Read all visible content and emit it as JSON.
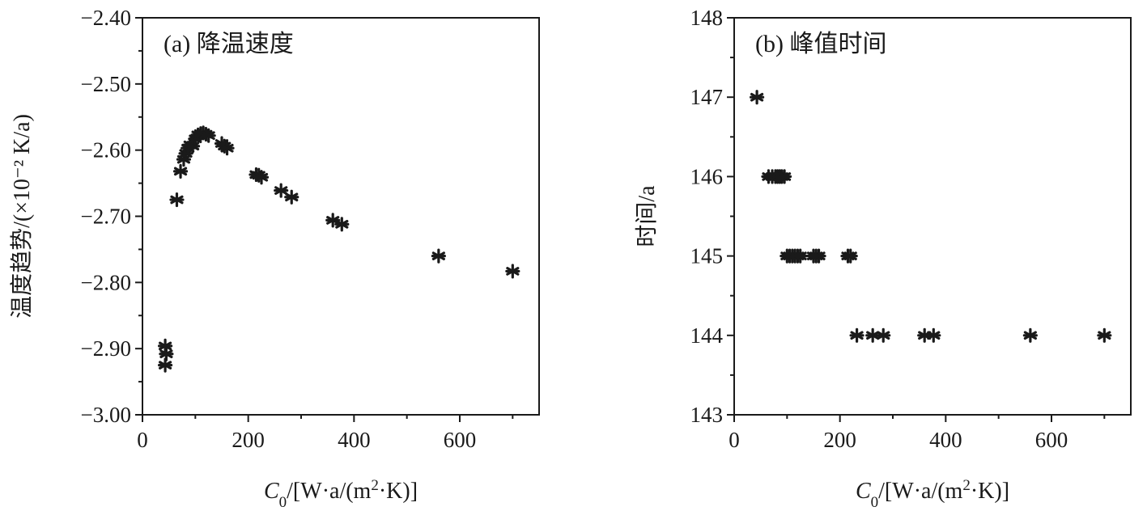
{
  "chart_data": [
    {
      "type": "scatter",
      "panel_label": "(a) 降温速度",
      "xlabel": {
        "italic": "C",
        "sub": "0",
        "rest": "/[W·a/(m",
        "sup": "2",
        "end": "·K)]"
      },
      "ylabel": "温度趋势/(×10⁻² K/a)",
      "xlim": [
        0,
        750
      ],
      "ylim": [
        -3.0,
        -2.4
      ],
      "xticks": [
        0,
        200,
        400,
        600
      ],
      "xtick_labels": [
        "0",
        "200",
        "400",
        "600"
      ],
      "yticks": [
        -3.0,
        -2.9,
        -2.8,
        -2.7,
        -2.6,
        -2.5,
        -2.4
      ],
      "ytick_labels": [
        "−3.00",
        "−2.90",
        "−2.80",
        "−2.70",
        "−2.60",
        "−2.50",
        "−2.40"
      ],
      "marker": "asterisk",
      "points": [
        [
          43,
          -2.925
        ],
        [
          43,
          -2.896
        ],
        [
          45,
          -2.908
        ],
        [
          65,
          -2.675
        ],
        [
          72,
          -2.632
        ],
        [
          78,
          -2.614
        ],
        [
          82,
          -2.605
        ],
        [
          86,
          -2.597
        ],
        [
          90,
          -2.592
        ],
        [
          95,
          -2.594
        ],
        [
          100,
          -2.583
        ],
        [
          105,
          -2.577
        ],
        [
          110,
          -2.575
        ],
        [
          115,
          -2.574
        ],
        [
          120,
          -2.576
        ],
        [
          125,
          -2.578
        ],
        [
          150,
          -2.59
        ],
        [
          155,
          -2.594
        ],
        [
          160,
          -2.597
        ],
        [
          215,
          -2.637
        ],
        [
          220,
          -2.638
        ],
        [
          225,
          -2.641
        ],
        [
          262,
          -2.661
        ],
        [
          282,
          -2.671
        ],
        [
          360,
          -2.706
        ],
        [
          377,
          -2.712
        ],
        [
          560,
          -2.76
        ],
        [
          700,
          -2.783
        ]
      ]
    },
    {
      "type": "scatter",
      "panel_label": "(b) 峰值时间",
      "xlabel": {
        "italic": "C",
        "sub": "0",
        "rest": "/[W·a/(m",
        "sup": "2",
        "end": "·K)]"
      },
      "ylabel": "时间/a",
      "xlim": [
        0,
        750
      ],
      "ylim": [
        143,
        148
      ],
      "xticks": [
        0,
        200,
        400,
        600
      ],
      "xtick_labels": [
        "0",
        "200",
        "400",
        "600"
      ],
      "yticks": [
        143,
        144,
        145,
        146,
        147,
        148
      ],
      "ytick_labels": [
        "143",
        "144",
        "145",
        "146",
        "147",
        "148"
      ],
      "marker": "asterisk",
      "points": [
        [
          43,
          147
        ],
        [
          65,
          146
        ],
        [
          72,
          146
        ],
        [
          78,
          146
        ],
        [
          82,
          146
        ],
        [
          86,
          146
        ],
        [
          90,
          146
        ],
        [
          95,
          146
        ],
        [
          100,
          145
        ],
        [
          105,
          145
        ],
        [
          110,
          145
        ],
        [
          115,
          145
        ],
        [
          120,
          145
        ],
        [
          125,
          145
        ],
        [
          150,
          145
        ],
        [
          155,
          145
        ],
        [
          160,
          145
        ],
        [
          215,
          145
        ],
        [
          220,
          145
        ],
        [
          232,
          144
        ],
        [
          262,
          144
        ],
        [
          282,
          144
        ],
        [
          360,
          144
        ],
        [
          377,
          144
        ],
        [
          560,
          144
        ],
        [
          700,
          144
        ]
      ]
    }
  ]
}
